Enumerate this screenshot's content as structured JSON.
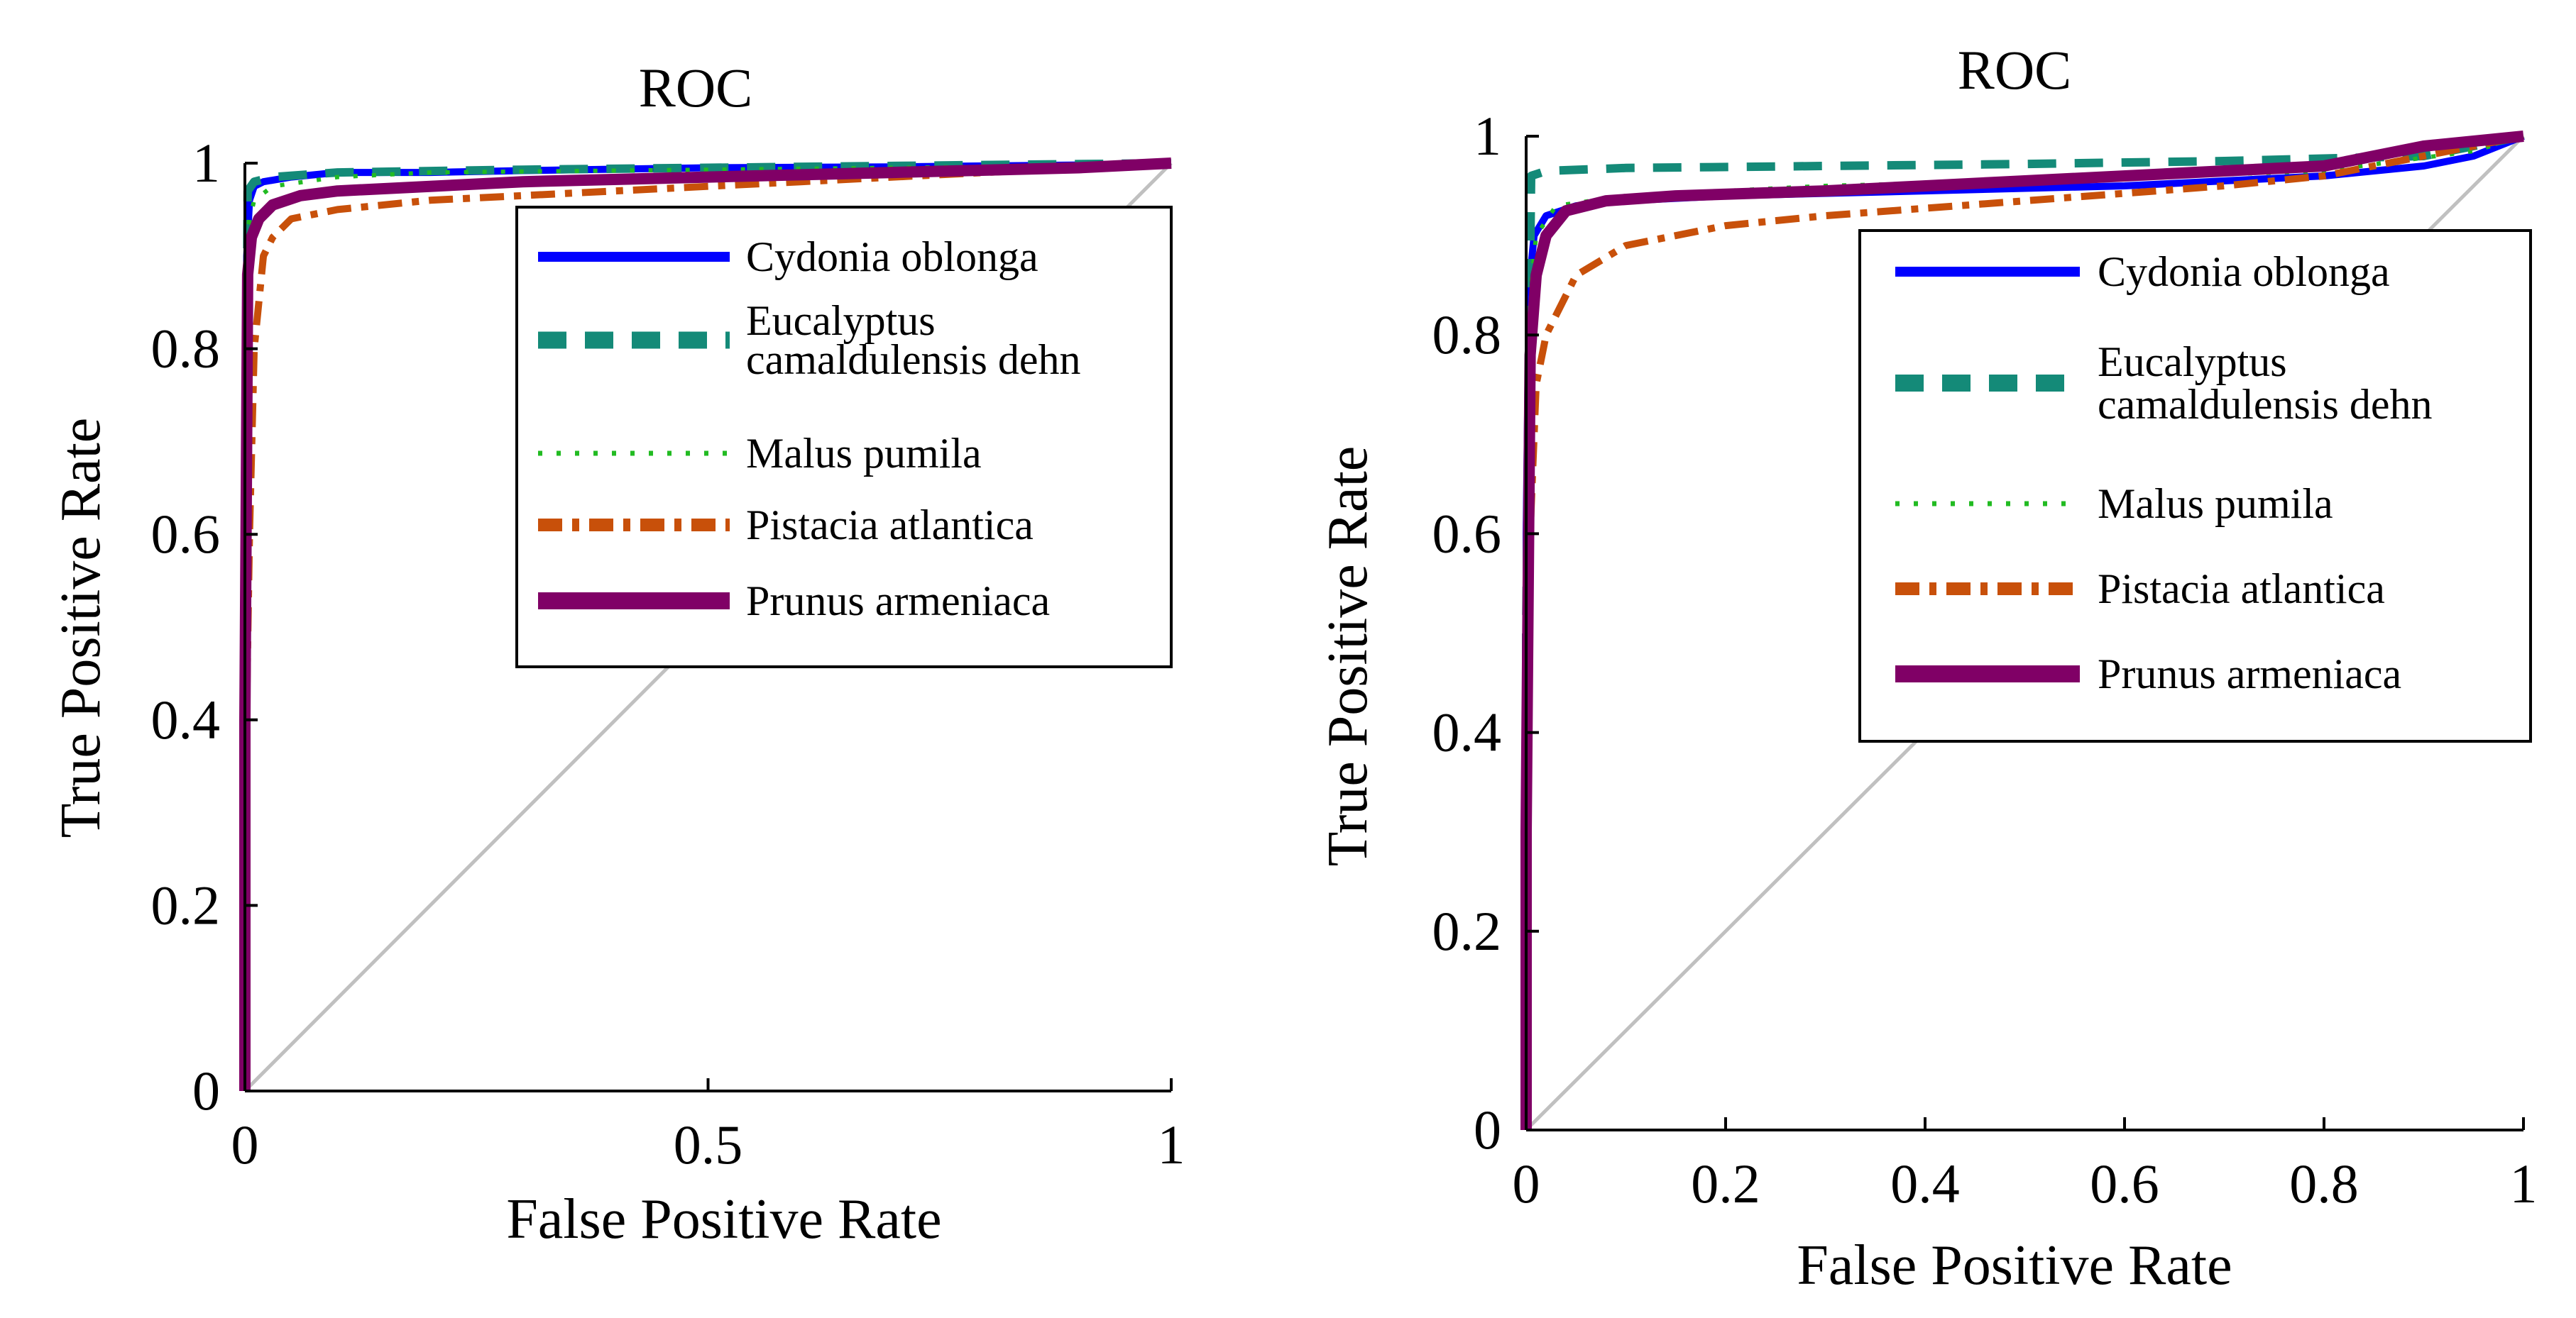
{
  "chart_data": [
    {
      "type": "line",
      "title": "ROC",
      "xlabel": "False Positive Rate",
      "ylabel": "True Positive Rate",
      "xlim": [
        0,
        1
      ],
      "ylim": [
        0,
        1
      ],
      "xticks": [
        0,
        0.5,
        1
      ],
      "xtick_labels": [
        "0",
        "0.5",
        "1"
      ],
      "yticks": [
        0,
        0.2,
        0.4,
        0.6,
        0.8,
        1
      ],
      "ytick_labels": [
        "0",
        "0.2",
        "0.4",
        "0.6",
        "0.8",
        "1"
      ],
      "legend_position": "right",
      "diagonal": {
        "x": [
          0,
          1
        ],
        "y": [
          0,
          1
        ],
        "color": "#c0c0c0"
      },
      "series": [
        {
          "name": "Cydonia oblonga",
          "legend_lines": [
            "Cydonia oblonga"
          ],
          "color": "#0000ff",
          "dash": "solid",
          "x": [
            0,
            0,
            0.002,
            0.005,
            0.01,
            0.02,
            0.05,
            0.1,
            0.2,
            0.3,
            0.5,
            0.7,
            0.9,
            1
          ],
          "y": [
            0,
            0.4,
            0.9,
            0.96,
            0.975,
            0.98,
            0.985,
            0.99,
            0.99,
            0.992,
            0.995,
            0.996,
            0.998,
            1
          ]
        },
        {
          "name": "Eucalyptus camaldulensis dehn",
          "legend_lines": [
            "Eucalyptus",
            "camaldulensis dehn"
          ],
          "color": "#148a78",
          "dash": "dashed",
          "x": [
            0,
            0,
            0.003,
            0.01,
            0.03,
            0.1,
            0.3,
            0.5,
            0.7,
            1
          ],
          "y": [
            0,
            0.5,
            0.97,
            0.98,
            0.985,
            0.99,
            0.993,
            0.995,
            0.997,
            1
          ]
        },
        {
          "name": "Malus pumila",
          "legend_lines": [
            "Malus pumila"
          ],
          "color": "#22bb22",
          "dash": "dotted",
          "x": [
            0,
            0,
            0.003,
            0.01,
            0.03,
            0.1,
            0.2,
            0.5,
            0.8,
            1
          ],
          "y": [
            0,
            0.5,
            0.93,
            0.96,
            0.975,
            0.985,
            0.99,
            0.993,
            0.996,
            1
          ]
        },
        {
          "name": "Pistacia atlantica",
          "legend_lines": [
            "Pistacia atlantica"
          ],
          "color": "#c8500a",
          "dash": "dashdot",
          "x": [
            0,
            0,
            0.005,
            0.01,
            0.02,
            0.03,
            0.05,
            0.1,
            0.2,
            0.4,
            0.6,
            0.8,
            1
          ],
          "y": [
            0,
            0.3,
            0.6,
            0.8,
            0.9,
            0.92,
            0.94,
            0.95,
            0.96,
            0.97,
            0.98,
            0.99,
            1
          ]
        },
        {
          "name": "Prunus armeniaca",
          "legend_lines": [
            "Prunus armeniaca"
          ],
          "color": "#800066",
          "dash": "thick",
          "x": [
            0,
            0,
            0.003,
            0.007,
            0.015,
            0.03,
            0.06,
            0.1,
            0.2,
            0.3,
            0.5,
            0.7,
            0.9,
            1
          ],
          "y": [
            0,
            0.4,
            0.88,
            0.92,
            0.94,
            0.955,
            0.965,
            0.97,
            0.975,
            0.98,
            0.985,
            0.99,
            0.995,
            1
          ]
        }
      ]
    },
    {
      "type": "line",
      "title": "ROC",
      "xlabel": "False Positive Rate",
      "ylabel": "True Positive Rate",
      "xlim": [
        0,
        1
      ],
      "ylim": [
        0,
        1
      ],
      "xticks": [
        0,
        0.2,
        0.4,
        0.6,
        0.8,
        1
      ],
      "xtick_labels": [
        "0",
        "0.2",
        "0.4",
        "0.6",
        "0.8",
        "1"
      ],
      "yticks": [
        0,
        0.2,
        0.4,
        0.6,
        0.8,
        1
      ],
      "ytick_labels": [
        "0",
        "0.2",
        "0.4",
        "0.6",
        "0.8",
        "1"
      ],
      "legend_position": "right",
      "diagonal": {
        "x": [
          0,
          1
        ],
        "y": [
          0,
          1
        ],
        "color": "#c0c0c0"
      },
      "series": [
        {
          "name": "Cydonia oblonga",
          "legend_lines": [
            "Cydonia oblonga"
          ],
          "color": "#0000ff",
          "dash": "solid",
          "x": [
            0,
            0,
            0.003,
            0.008,
            0.02,
            0.05,
            0.1,
            0.2,
            0.4,
            0.6,
            0.8,
            0.9,
            0.95,
            1
          ],
          "y": [
            0,
            0.6,
            0.85,
            0.9,
            0.92,
            0.93,
            0.935,
            0.94,
            0.945,
            0.95,
            0.96,
            0.97,
            0.98,
            1
          ]
        },
        {
          "name": "Eucalyptus camaldulensis dehn",
          "legend_lines": [
            "Eucalyptus",
            "camaldulensis dehn"
          ],
          "color": "#148a78",
          "dash": "dashed",
          "x": [
            0,
            0,
            0.005,
            0.02,
            0.1,
            0.3,
            0.5,
            0.7,
            0.9,
            0.95,
            1
          ],
          "y": [
            0,
            0.5,
            0.96,
            0.965,
            0.968,
            0.97,
            0.972,
            0.975,
            0.98,
            0.99,
            1
          ]
        },
        {
          "name": "Malus pumila",
          "legend_lines": [
            "Malus pumila"
          ],
          "color": "#22bb22",
          "dash": "dotted",
          "x": [
            0,
            0,
            0.005,
            0.01,
            0.03,
            0.1,
            0.3,
            0.5,
            0.8,
            0.95,
            1
          ],
          "y": [
            0,
            0.5,
            0.85,
            0.9,
            0.93,
            0.94,
            0.95,
            0.955,
            0.965,
            0.985,
            1
          ]
        },
        {
          "name": "Pistacia atlantica",
          "legend_lines": [
            "Pistacia atlantica"
          ],
          "color": "#c8500a",
          "dash": "dashdot",
          "x": [
            0,
            0,
            0.004,
            0.01,
            0.02,
            0.05,
            0.1,
            0.2,
            0.3,
            0.5,
            0.7,
            0.8,
            0.9,
            1
          ],
          "y": [
            0,
            0.3,
            0.6,
            0.75,
            0.8,
            0.86,
            0.89,
            0.91,
            0.92,
            0.935,
            0.95,
            0.96,
            0.98,
            1
          ]
        },
        {
          "name": "Prunus armeniaca",
          "legend_lines": [
            "Prunus armeniaca"
          ],
          "color": "#800066",
          "dash": "thick",
          "x": [
            0,
            0,
            0.004,
            0.01,
            0.02,
            0.04,
            0.08,
            0.15,
            0.3,
            0.5,
            0.7,
            0.8,
            0.85,
            0.9,
            1
          ],
          "y": [
            0,
            0.3,
            0.78,
            0.86,
            0.9,
            0.925,
            0.935,
            0.94,
            0.945,
            0.955,
            0.965,
            0.97,
            0.98,
            0.99,
            1
          ]
        }
      ]
    }
  ]
}
